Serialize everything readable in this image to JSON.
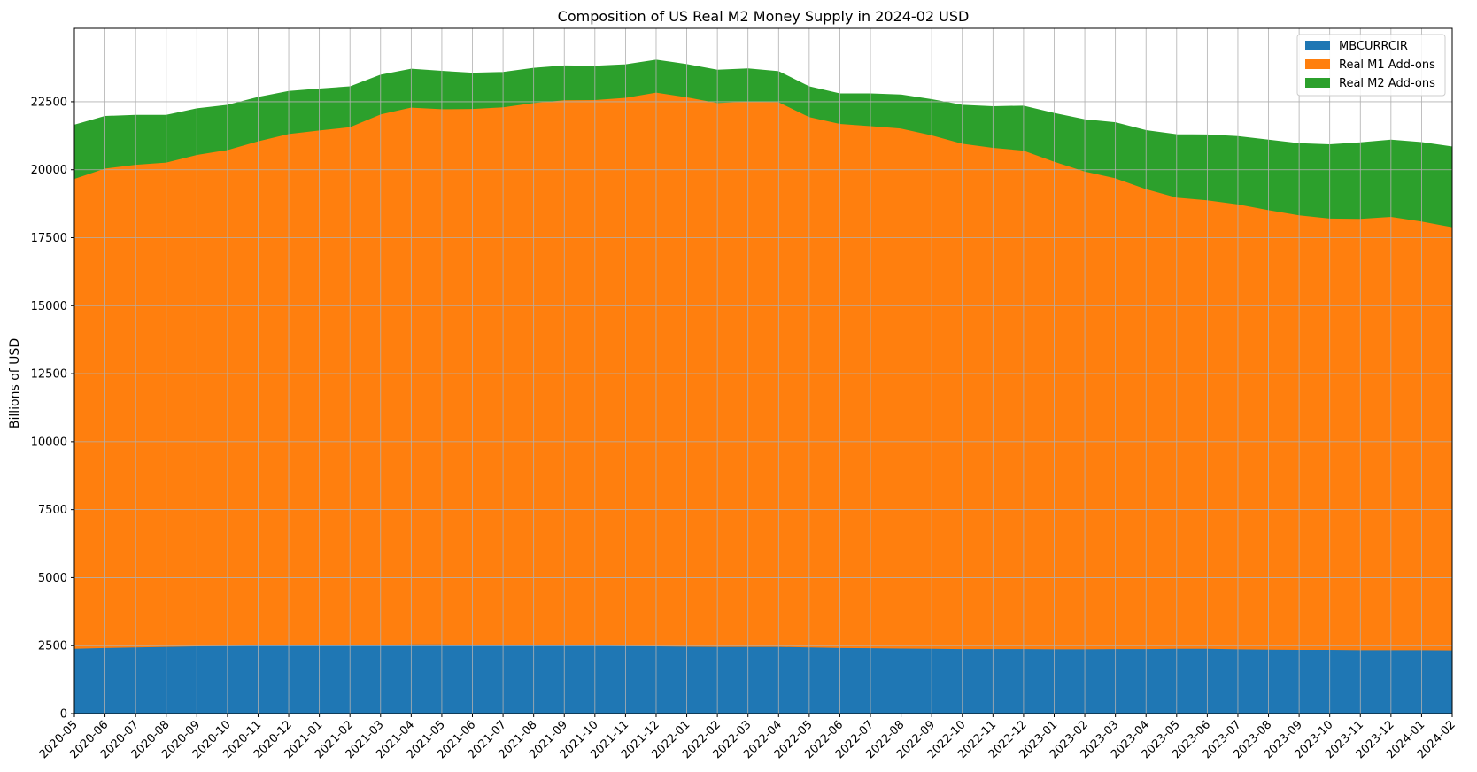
{
  "chart_data": {
    "type": "area",
    "stacked": true,
    "title": "Composition of US Real M2 Money Supply in 2024-02 USD",
    "xlabel": "",
    "ylabel": "Billions of USD",
    "ylim": [
      0,
      25200
    ],
    "yticks": [
      0,
      2500,
      5000,
      7500,
      10000,
      12500,
      15000,
      17500,
      20000,
      22500
    ],
    "grid": true,
    "legend_position": "top-right",
    "x": [
      "2020-05",
      "2020-06",
      "2020-07",
      "2020-08",
      "2020-09",
      "2020-10",
      "2020-11",
      "2020-12",
      "2021-01",
      "2021-02",
      "2021-03",
      "2021-04",
      "2021-05",
      "2021-06",
      "2021-07",
      "2021-08",
      "2021-09",
      "2021-10",
      "2021-11",
      "2021-12",
      "2022-01",
      "2022-02",
      "2022-03",
      "2022-04",
      "2022-05",
      "2022-06",
      "2022-07",
      "2022-08",
      "2022-09",
      "2022-10",
      "2022-11",
      "2022-12",
      "2023-01",
      "2023-02",
      "2023-03",
      "2023-04",
      "2023-05",
      "2023-06",
      "2023-07",
      "2023-08",
      "2023-09",
      "2023-10",
      "2023-11",
      "2023-12",
      "2024-01",
      "2024-02"
    ],
    "series": [
      {
        "name": "MBCURRCIR",
        "color": "#1f77b4",
        "values": [
          2400,
          2430,
          2450,
          2470,
          2490,
          2500,
          2510,
          2510,
          2530,
          2520,
          2530,
          2560,
          2560,
          2550,
          2540,
          2530,
          2530,
          2510,
          2500,
          2490,
          2480,
          2470,
          2470,
          2470,
          2450,
          2430,
          2420,
          2410,
          2400,
          2390,
          2390,
          2390,
          2380,
          2380,
          2390,
          2390,
          2400,
          2400,
          2380,
          2370,
          2360,
          2360,
          2350,
          2350,
          2350,
          2340
        ]
      },
      {
        "name": "Real M1 Add-ons",
        "color": "#ff7f0e",
        "values": [
          17280,
          17630,
          17750,
          17810,
          18070,
          18240,
          18550,
          18820,
          18930,
          19060,
          19520,
          19740,
          19680,
          19700,
          19770,
          19940,
          20040,
          20070,
          20160,
          20360,
          20200,
          20000,
          20050,
          20030,
          19500,
          19270,
          19200,
          19120,
          18880,
          18580,
          18430,
          18330,
          17930,
          17570,
          17310,
          16910,
          16590,
          16490,
          16360,
          16160,
          15980,
          15860,
          15860,
          15930,
          15760,
          15560
        ]
      },
      {
        "name": "Real M2 Add-ons",
        "color": "#2ca02c",
        "values": [
          1960,
          1900,
          1800,
          1720,
          1680,
          1630,
          1600,
          1550,
          1510,
          1470,
          1430,
          1400,
          1380,
          1300,
          1270,
          1260,
          1250,
          1230,
          1200,
          1180,
          1190,
          1190,
          1190,
          1110,
          1100,
          1090,
          1170,
          1220,
          1300,
          1400,
          1500,
          1620,
          1760,
          1890,
          2030,
          2140,
          2300,
          2390,
          2480,
          2560,
          2620,
          2700,
          2780,
          2810,
          2890,
          2940
        ]
      }
    ]
  }
}
